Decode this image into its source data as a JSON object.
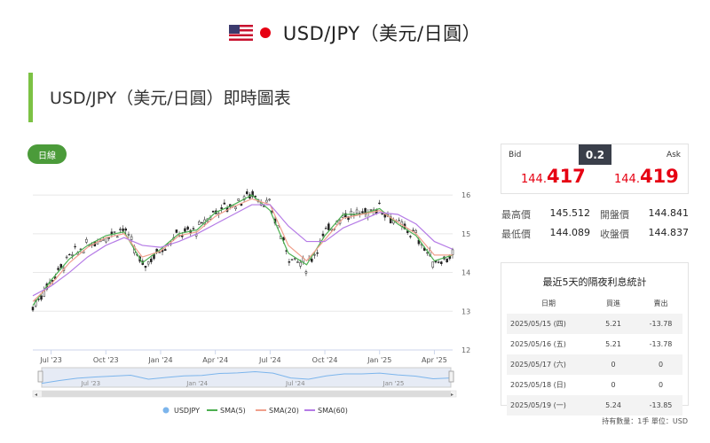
{
  "header": {
    "title": "USD/JPY（美元/日圓）",
    "flag_left": "us-flag-icon",
    "flag_right": "japan-flag-icon"
  },
  "section": {
    "title": "USD/JPY（美元/日圓）即時圖表",
    "accent_color": "#7cc244"
  },
  "period_button": {
    "label": "日線",
    "color": "#4b9b3a"
  },
  "quote": {
    "bid_label": "Bid",
    "ask_label": "Ask",
    "spread": "0.2",
    "bid_small": "144.",
    "bid_big": "417",
    "ask_small": "144.",
    "ask_big": "419",
    "price_color": "#e60012"
  },
  "stats": {
    "high_label": "最高價",
    "high_value": "145.512",
    "open_label": "開盤價",
    "open_value": "144.841",
    "low_label": "最低價",
    "low_value": "144.089",
    "close_label": "收盤價",
    "close_value": "144.837"
  },
  "interest": {
    "title": "最近5天的隔夜利息統計",
    "headers": [
      "日期",
      "買進",
      "賣出"
    ],
    "rows": [
      {
        "date": "2025/05/15 (四)",
        "buy": "5.21",
        "sell": "-13.78"
      },
      {
        "date": "2025/05/16 (五)",
        "buy": "5.21",
        "sell": "-13.78"
      },
      {
        "date": "2025/05/17 (六)",
        "buy": "0",
        "sell": "0"
      },
      {
        "date": "2025/05/18 (日)",
        "buy": "0",
        "sell": "0"
      },
      {
        "date": "2025/05/19 (一)",
        "buy": "5.24",
        "sell": "-13.85"
      }
    ],
    "footnote": "持有數量：1手 單位：USD"
  },
  "chart_data": {
    "type": "line",
    "y_ticks": [
      120,
      130,
      140,
      150,
      160
    ],
    "ylim": [
      120,
      163
    ],
    "x_ticks": [
      "Jul '23",
      "Oct '23",
      "Jan '24",
      "Apr '24",
      "Jul '24",
      "Oct '24",
      "Jan '25",
      "Apr '25"
    ],
    "navigator_ticks": [
      "Jul '23",
      "Jan '24",
      "Jul '24",
      "Jan '25"
    ],
    "x": [
      "Jun '23",
      "Jul '23",
      "Aug '23",
      "Sep '23",
      "Oct '23",
      "Nov '23",
      "Dec '23",
      "Jan '24",
      "Feb '24",
      "Mar '24",
      "Apr '24",
      "May '24",
      "Jun '24",
      "Jul '24",
      "Aug '24",
      "Sep '24",
      "Oct '24",
      "Nov '24",
      "Dec '24",
      "Jan '25",
      "Feb '25",
      "Mar '25",
      "Apr '25",
      "May '25"
    ],
    "grid": true,
    "legend_position": "bottom",
    "series": [
      {
        "name": "USDJPY",
        "color": "#7cb5ec",
        "values": [
          131,
          138,
          144,
          147,
          149.5,
          151.5,
          141.5,
          146,
          150,
          151,
          156,
          157.5,
          160.5,
          157,
          144.5,
          141.5,
          150,
          155,
          155,
          157,
          152.5,
          149.5,
          142.5,
          144.5
        ]
      },
      {
        "name": "SMA(5)",
        "color": "#4caf50",
        "values": [
          131.5,
          138,
          143.5,
          147,
          149.5,
          150.5,
          142.5,
          146,
          150,
          151,
          155.5,
          157.5,
          160,
          156,
          145,
          142,
          149.5,
          155,
          155,
          156.5,
          152.5,
          149.5,
          143,
          144.5
        ]
      },
      {
        "name": "SMA(20)",
        "color": "#f0a08c",
        "values": [
          132.5,
          137,
          142.5,
          146.5,
          149,
          150,
          144,
          145.5,
          149.5,
          150.5,
          154.5,
          157,
          159,
          157.5,
          147,
          143,
          148.5,
          154,
          155,
          156,
          153,
          150,
          144.5,
          144.5
        ]
      },
      {
        "name": "SMA(60)",
        "color": "#b57be6",
        "values": [
          134,
          136.5,
          140,
          144,
          147,
          149,
          147,
          146.5,
          148,
          150,
          152.5,
          155,
          157.5,
          157.5,
          152,
          148,
          148,
          151.5,
          153.5,
          155.5,
          155,
          152.5,
          148,
          146
        ]
      }
    ]
  }
}
